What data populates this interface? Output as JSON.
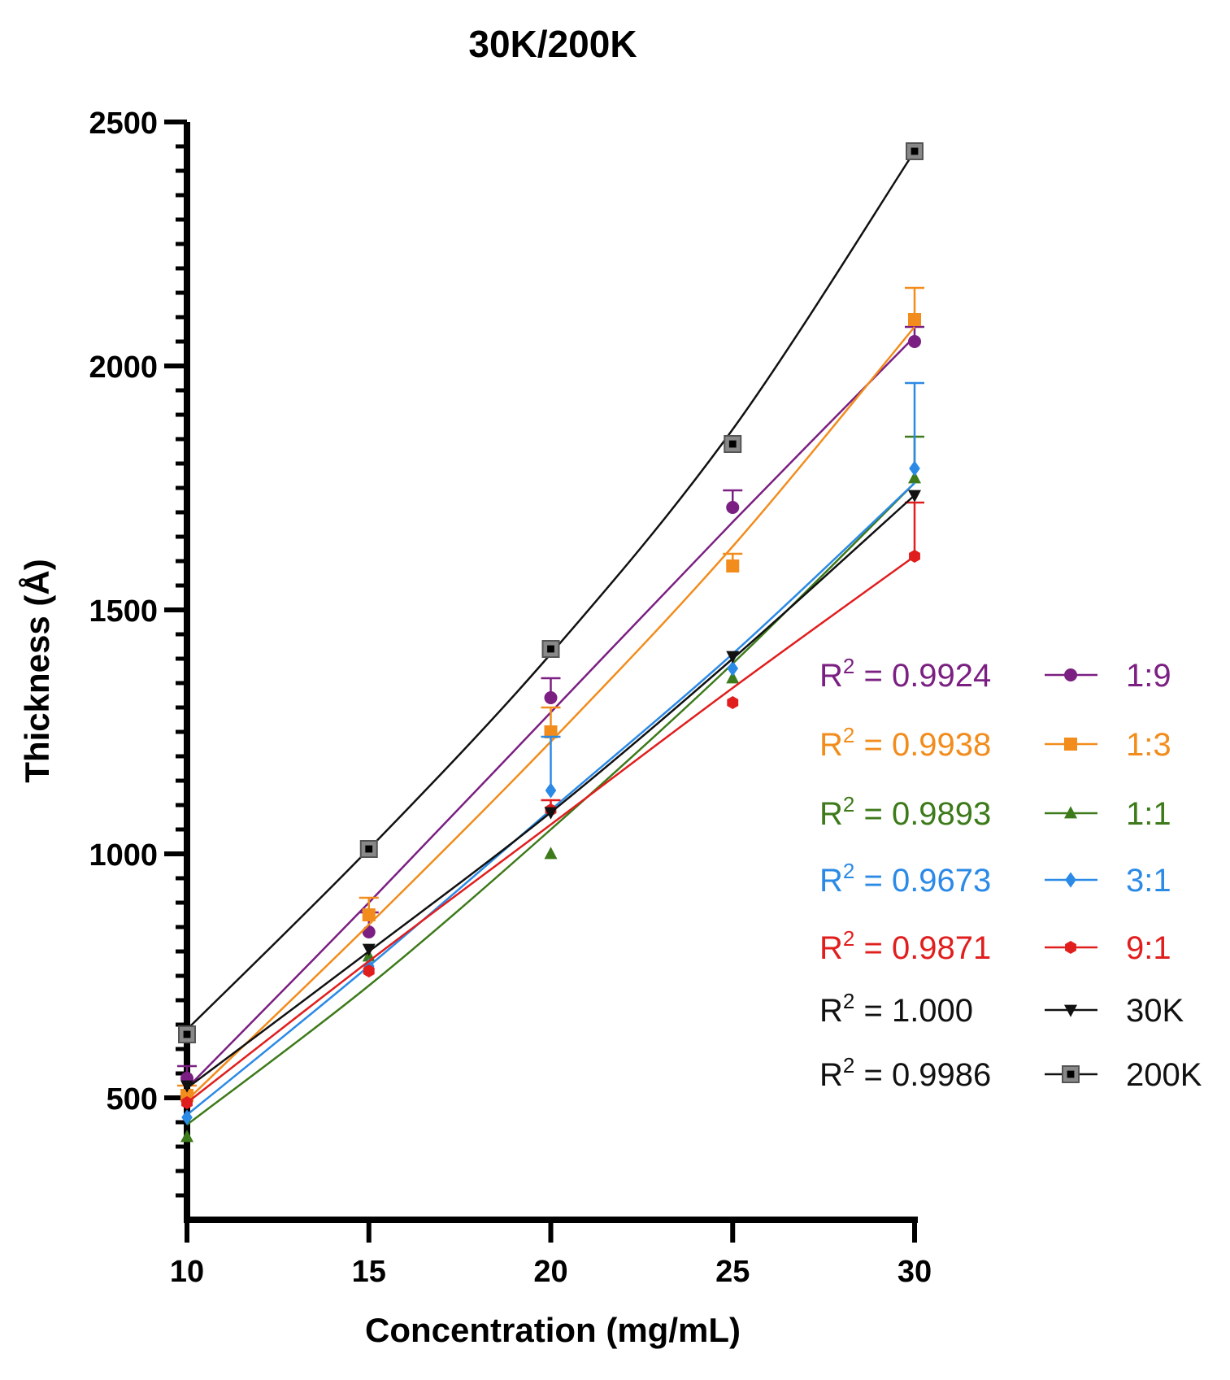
{
  "chart_data": {
    "type": "line",
    "title": "30K/200K",
    "xlabel": "Concentration (mg/mL)",
    "ylabel": "Thickness (Å)",
    "xlim": [
      10,
      30
    ],
    "ylim": [
      250,
      2500
    ],
    "x_ticks": [
      10,
      15,
      20,
      25,
      30
    ],
    "y_ticks": [
      500,
      1000,
      1500,
      2000,
      2500
    ],
    "legend_position": "right",
    "x": [
      10,
      15,
      20,
      25,
      30
    ],
    "series": [
      {
        "name": "1:9",
        "r2": "0.9924",
        "color": "#7b1f82",
        "marker": "circle",
        "values": [
          540,
          840,
          1320,
          1710,
          2050
        ],
        "errors": [
          25,
          40,
          40,
          35,
          30
        ],
        "fit": [
          520,
          900,
          1290,
          1680,
          2060
        ]
      },
      {
        "name": "1:3",
        "r2": "0.9938",
        "color": "#f28c1c",
        "marker": "square",
        "values": [
          505,
          875,
          1250,
          1590,
          2095
        ],
        "errors": [
          20,
          35,
          50,
          25,
          65
        ],
        "fit": [
          495,
          855,
          1230,
          1630,
          2080
        ]
      },
      {
        "name": "1:1",
        "r2": "0.9893",
        "color": "#3d7a1a",
        "marker": "triangle",
        "values": [
          420,
          790,
          1000,
          1360,
          1770
        ],
        "errors": [
          0,
          0,
          0,
          0,
          85
        ],
        "fit": [
          445,
          730,
          1050,
          1390,
          1760
        ]
      },
      {
        "name": "3:1",
        "r2": "0.9673",
        "color": "#2b8ae6",
        "marker": "diamond",
        "values": [
          460,
          770,
          1130,
          1380,
          1790
        ],
        "errors": [
          0,
          0,
          110,
          0,
          175
        ],
        "fit": [
          465,
          770,
          1090,
          1410,
          1760
        ]
      },
      {
        "name": "9:1",
        "r2": "0.9871",
        "color": "#e11e1e",
        "marker": "hexagon",
        "values": [
          490,
          760,
          1090,
          1310,
          1610
        ],
        "errors": [
          0,
          0,
          20,
          0,
          110
        ],
        "fit": [
          490,
          780,
          1060,
          1340,
          1610
        ]
      },
      {
        "name": "30K",
        "r2": "1.000",
        "color": "#111111",
        "marker": "triangle-down",
        "values": [
          525,
          805,
          1085,
          1405,
          1735
        ],
        "errors": [
          0,
          0,
          0,
          0,
          0
        ],
        "fit": [
          520,
          800,
          1085,
          1400,
          1735
        ]
      },
      {
        "name": "200K",
        "r2": "0.9986",
        "color": "#111111",
        "marker": "square-gray",
        "values": [
          630,
          1010,
          1420,
          1840,
          2440
        ],
        "errors": [
          0,
          0,
          0,
          0,
          0
        ],
        "fit": [
          640,
          1010,
          1410,
          1870,
          2440
        ]
      }
    ]
  }
}
